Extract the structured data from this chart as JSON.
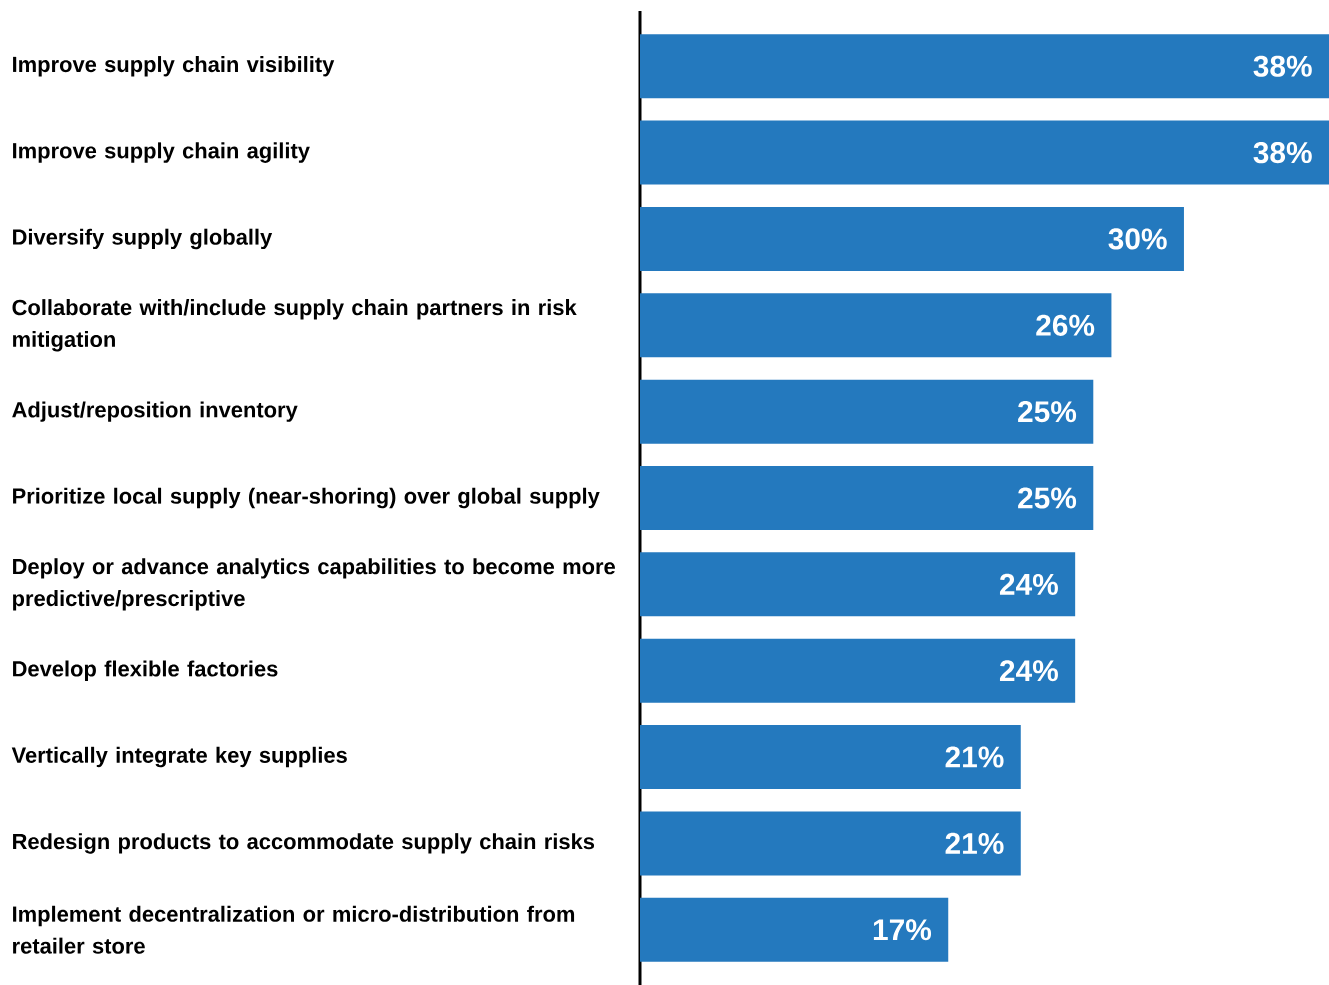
{
  "chart_data": {
    "type": "bar",
    "orientation": "horizontal",
    "categories": [
      "Improve supply chain visibility",
      "Improve supply chain agility",
      "Diversify supply globally",
      "Collaborate with/include supply chain partners in risk mitigation",
      "Adjust/reposition inventory",
      "Prioritize local supply (near-shoring) over global supply",
      "Deploy or advance analytics capabilities to become more predictive/prescriptive",
      "Develop flexible factories",
      "Vertically integrate key supplies",
      "Redesign products to accommodate supply chain risks",
      "Implement decentralization or micro-distribution from retailer store"
    ],
    "values": [
      38,
      38,
      30,
      26,
      25,
      25,
      24,
      24,
      21,
      21,
      17
    ],
    "value_labels": [
      "38%",
      "38%",
      "30%",
      "26%",
      "25%",
      "25%",
      "24%",
      "24%",
      "21%",
      "21%",
      "17%"
    ],
    "color": "#2479be"
  }
}
